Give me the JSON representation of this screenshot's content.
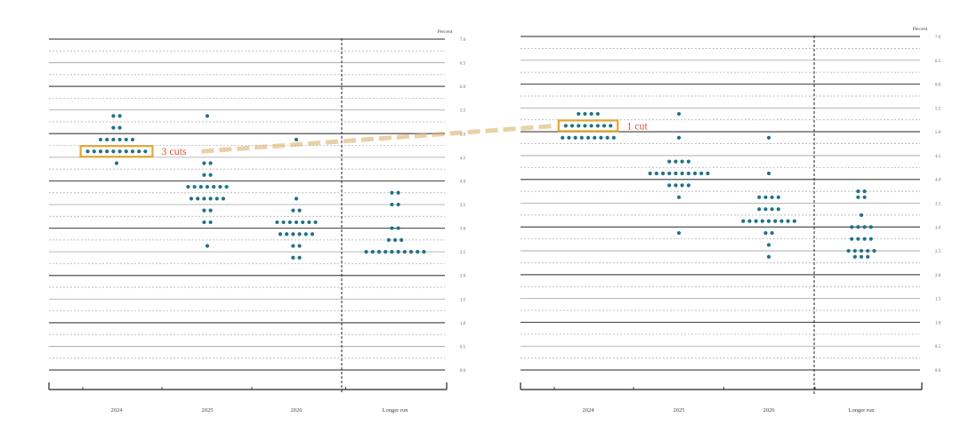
{
  "chart_data": [
    {
      "type": "scatter",
      "subtype": "dot-plot",
      "unit_label": "Percent",
      "categories": [
        "2024",
        "2025",
        "2026",
        "Longer run"
      ],
      "ylim": [
        0,
        7
      ],
      "yticks": [
        "0.0",
        "0.5",
        "1.0",
        "1.5",
        "2.0",
        "2.5",
        "3.0",
        "3.5",
        "4.0",
        "4.5",
        "5.0",
        "5.5",
        "6.0",
        "6.5",
        "7.0"
      ],
      "grid": true,
      "annotation": {
        "label": "3 cuts",
        "category": "2024",
        "value": 4.625
      },
      "dots": {
        "2024": [
          [
            5.375,
            2
          ],
          [
            5.125,
            2
          ],
          [
            4.875,
            6
          ],
          [
            4.625,
            10
          ],
          [
            4.375,
            1
          ]
        ],
        "2025": [
          [
            5.375,
            1
          ],
          [
            4.375,
            2
          ],
          [
            4.125,
            2
          ],
          [
            3.875,
            7
          ],
          [
            3.625,
            6
          ],
          [
            3.375,
            2
          ],
          [
            3.125,
            2
          ],
          [
            2.625,
            1
          ]
        ],
        "2026": [
          [
            4.875,
            1
          ],
          [
            3.625,
            1
          ],
          [
            3.375,
            2
          ],
          [
            3.125,
            7
          ],
          [
            2.875,
            6
          ],
          [
            2.625,
            2
          ],
          [
            2.375,
            2
          ]
        ],
        "Longer run": [
          [
            3.75,
            2
          ],
          [
            3.5,
            2
          ],
          [
            3.0,
            2
          ],
          [
            2.75,
            3
          ],
          [
            2.5,
            10
          ]
        ]
      }
    },
    {
      "type": "scatter",
      "subtype": "dot-plot",
      "unit_label": "Percent",
      "categories": [
        "2024",
        "2025",
        "2026",
        "Longer run"
      ],
      "ylim": [
        0,
        7
      ],
      "yticks": [
        "0.0",
        "0.5",
        "1.0",
        "1.5",
        "2.0",
        "2.5",
        "3.0",
        "3.5",
        "4.0",
        "4.5",
        "5.0",
        "5.5",
        "6.0",
        "6.5",
        "7.0"
      ],
      "grid": true,
      "annotation": {
        "label": "1 cut",
        "category": "2024",
        "value": 5.125
      },
      "dots": {
        "2024": [
          [
            5.375,
            4
          ],
          [
            5.125,
            8
          ],
          [
            4.875,
            9
          ]
        ],
        "2025": [
          [
            5.375,
            1
          ],
          [
            4.875,
            1
          ],
          [
            4.375,
            4
          ],
          [
            4.125,
            10
          ],
          [
            3.875,
            4
          ],
          [
            3.625,
            1
          ],
          [
            2.875,
            1
          ]
        ],
        "2026": [
          [
            4.875,
            1
          ],
          [
            4.125,
            1
          ],
          [
            3.625,
            4
          ],
          [
            3.375,
            4
          ],
          [
            3.125,
            9
          ],
          [
            2.875,
            2
          ],
          [
            2.625,
            1
          ],
          [
            2.375,
            1
          ]
        ],
        "Longer run": [
          [
            3.75,
            2
          ],
          [
            3.625,
            2
          ],
          [
            3.25,
            1
          ],
          [
            3.0,
            4
          ],
          [
            2.75,
            4
          ],
          [
            2.5,
            5
          ],
          [
            2.375,
            3
          ]
        ]
      }
    }
  ]
}
